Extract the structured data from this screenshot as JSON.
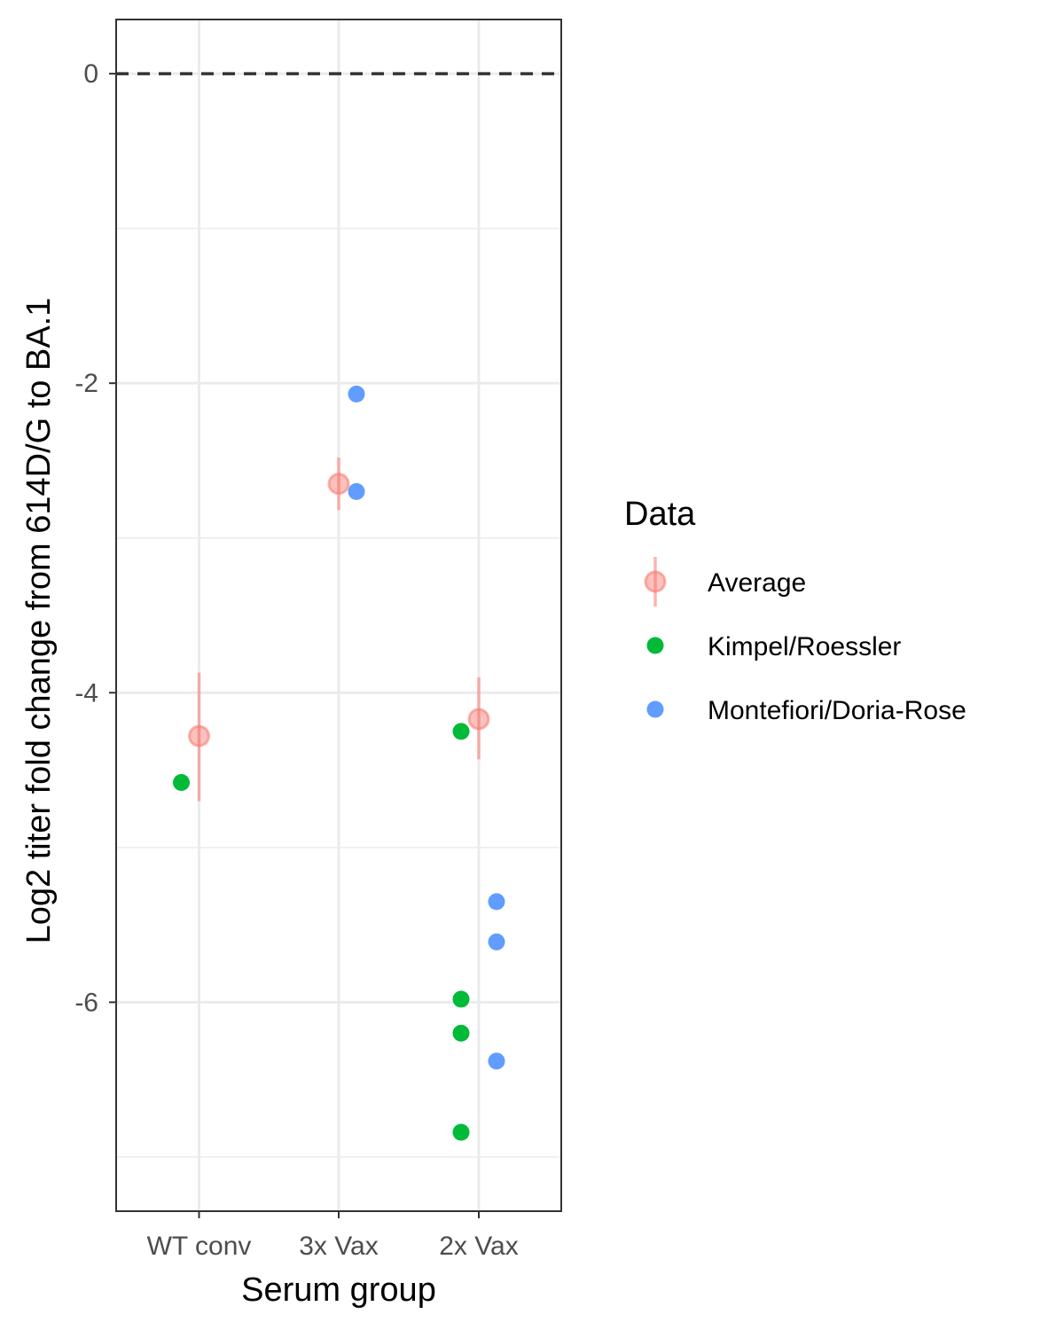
{
  "chart_data": {
    "type": "scatter",
    "xlabel": "Serum group",
    "ylabel": "Log2 titer fold change from 614D/G to BA.1",
    "categories": [
      "WT conv",
      "3x Vax",
      "2x Vax"
    ],
    "ylim": [
      -7.35,
      0.35
    ],
    "yticks": [
      0,
      -2,
      -4,
      -6
    ],
    "ytick_labels": [
      "0",
      "-2",
      "-4",
      "-6"
    ],
    "reference_line": 0,
    "grid": true,
    "legend": {
      "title": "Data",
      "position": "right",
      "entries": [
        "Average",
        "Kimpel/Roessler",
        "Montefiori/Doria-Rose"
      ]
    },
    "series": [
      {
        "name": "Average",
        "color": "#F8766D",
        "style": "point-with-errorbar",
        "points": [
          {
            "category": "WT conv",
            "y": -4.28,
            "ymin": -4.7,
            "ymax": -3.87
          },
          {
            "category": "3x Vax",
            "y": -2.65,
            "ymin": -2.82,
            "ymax": -2.48
          },
          {
            "category": "2x Vax",
            "y": -4.17,
            "ymin": -4.43,
            "ymax": -3.9
          }
        ]
      },
      {
        "name": "Kimpel/Roessler",
        "color": "#00BA38",
        "style": "point",
        "points": [
          {
            "category": "WT conv",
            "y": -4.58
          },
          {
            "category": "2x Vax",
            "y": -4.25
          },
          {
            "category": "2x Vax",
            "y": -5.98
          },
          {
            "category": "2x Vax",
            "y": -6.2
          },
          {
            "category": "2x Vax",
            "y": -6.84
          }
        ]
      },
      {
        "name": "Montefiori/Doria-Rose",
        "color": "#619CFF",
        "style": "point",
        "points": [
          {
            "category": "3x Vax",
            "y": -2.07
          },
          {
            "category": "3x Vax",
            "y": -2.7
          },
          {
            "category": "2x Vax",
            "y": -5.35
          },
          {
            "category": "2x Vax",
            "y": -5.61
          },
          {
            "category": "2x Vax",
            "y": -6.38
          }
        ]
      }
    ]
  }
}
